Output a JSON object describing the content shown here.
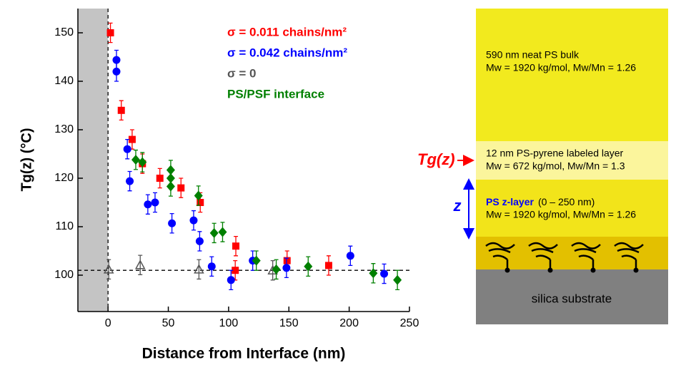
{
  "chart_data": {
    "type": "scatter",
    "x_label": "Distance from Interface  (nm)",
    "y_label": "Tg(z)   (°C)",
    "xlim": [
      -25,
      250
    ],
    "xticks": [
      0,
      50,
      100,
      150,
      200,
      250
    ],
    "ylim": [
      92.5,
      155
    ],
    "yticks": [
      100,
      110,
      120,
      130,
      140,
      150
    ],
    "shaded_region": [
      -25,
      0
    ],
    "reference_lines": {
      "x": 0,
      "y": 101
    },
    "series": [
      {
        "name": "σ = 0.011 chains/nm²",
        "color": "#ff0000",
        "marker": "square",
        "x": [
          2,
          11,
          20,
          28.5,
          43,
          60.5,
          76.5,
          106,
          105.5,
          148.5,
          183
        ],
        "values": [
          150,
          134,
          128,
          123,
          120,
          118,
          115,
          106,
          101,
          103,
          102
        ],
        "errors": [
          2,
          2,
          2,
          2,
          2,
          2,
          2,
          2,
          2,
          2,
          2
        ]
      },
      {
        "name": "σ = 0.042 chains/nm²",
        "color": "#0000ff",
        "marker": "circle",
        "x": [
          7,
          7,
          16,
          18,
          33,
          39,
          53,
          71,
          76,
          86,
          102,
          120,
          148,
          201,
          229
        ],
        "values": [
          144.4,
          142,
          126,
          119.4,
          114.6,
          115,
          110.7,
          111.3,
          107,
          101.8,
          99,
          103,
          101.5,
          104,
          100.3
        ],
        "errors": [
          2,
          2,
          2,
          2,
          2,
          2,
          2,
          2,
          2,
          2,
          2,
          2,
          2,
          2,
          2
        ]
      },
      {
        "name": "σ = 0",
        "color": "#555555",
        "marker": "triangle",
        "x": [
          0.6,
          26.7,
          75.4,
          136.6
        ],
        "values": [
          101.2,
          102.1,
          101.2,
          101
        ],
        "errors": [
          2,
          2,
          2,
          2
        ]
      },
      {
        "name": "PS/PSF interface",
        "color": "#008000",
        "marker": "diamond",
        "x": [
          23,
          28.5,
          52,
          52,
          52,
          75,
          88,
          95,
          123,
          139.5,
          166,
          220,
          240
        ],
        "values": [
          123.8,
          123.3,
          121.7,
          120,
          118.3,
          116.4,
          108.7,
          108.9,
          103,
          101.2,
          101.8,
          100.4,
          99
        ],
        "errors": [
          2,
          2,
          2,
          2,
          2,
          2,
          2,
          2,
          2,
          2,
          2,
          2,
          2
        ]
      }
    ]
  },
  "diagram": {
    "tg_label": "Tg(z)",
    "z_label": "z",
    "layers": [
      {
        "lines": [
          "590 nm neat PS bulk",
          "Mw = 1920 kg/mol, Mw/Mn = 1.26"
        ]
      },
      {
        "lines": [
          "12 nm PS-pyrene labeled layer",
          "Mw = 672 kg/mol, Mw/Mn = 1.3"
        ]
      },
      {
        "title": "PS z-layer",
        "range": "(0 – 250 nm)",
        "lines": [
          "Mw = 1920 kg/mol, Mw/Mn = 1.26"
        ]
      },
      {
        "lines": [
          "silica substrate"
        ]
      }
    ]
  }
}
